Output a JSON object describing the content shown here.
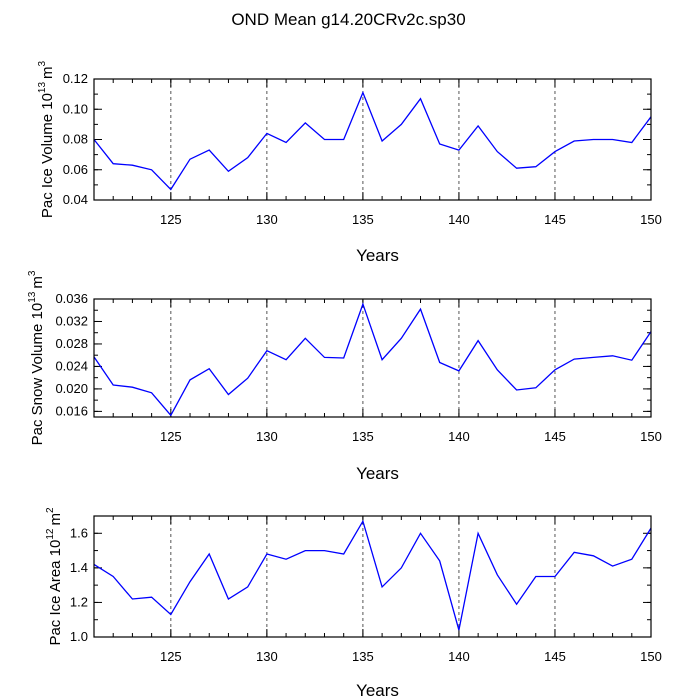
{
  "title": "OND Mean g14.20CRv2c.sp30",
  "chart_data": [
    {
      "type": "line",
      "xlabel": "Years",
      "ylabel": "Pac Ice Volume 10",
      "ylabel_exp": "13",
      "ylabel_unit": "m",
      "ylabel_unit_exp": "3",
      "xlim": [
        121,
        150
      ],
      "ylim": [
        0.04,
        0.12
      ],
      "xticks": [
        125,
        130,
        135,
        140,
        145,
        150
      ],
      "xtick_labels": [
        "125",
        "130",
        "135",
        "140",
        "145",
        "150"
      ],
      "yticks": [
        0.04,
        0.06,
        0.08,
        0.1,
        0.12
      ],
      "ytick_labels": [
        "0.04",
        "0.06",
        "0.08",
        "0.10",
        "0.12"
      ],
      "gridlines_x": [
        125,
        130,
        135,
        140,
        145
      ],
      "line_color": "#0000ff",
      "x": [
        121,
        122,
        123,
        124,
        125,
        126,
        127,
        128,
        129,
        130,
        131,
        132,
        133,
        134,
        135,
        136,
        137,
        138,
        139,
        140,
        141,
        142,
        143,
        144,
        145,
        146,
        147,
        148,
        149,
        150
      ],
      "values": [
        0.08,
        0.064,
        0.063,
        0.06,
        0.047,
        0.067,
        0.073,
        0.059,
        0.068,
        0.084,
        0.078,
        0.091,
        0.08,
        0.08,
        0.111,
        0.079,
        0.09,
        0.107,
        0.077,
        0.073,
        0.089,
        0.072,
        0.061,
        0.062,
        0.072,
        0.079,
        0.08,
        0.08,
        0.078,
        0.095
      ]
    },
    {
      "type": "line",
      "xlabel": "Years",
      "ylabel": "Pac Snow Volume 10",
      "ylabel_exp": "13",
      "ylabel_unit": "m",
      "ylabel_unit_exp": "3",
      "xlim": [
        121,
        150
      ],
      "ylim": [
        0.015,
        0.036
      ],
      "xticks": [
        125,
        130,
        135,
        140,
        145,
        150
      ],
      "xtick_labels": [
        "125",
        "130",
        "135",
        "140",
        "145",
        "150"
      ],
      "yticks": [
        0.016,
        0.02,
        0.024,
        0.028,
        0.032,
        0.036
      ],
      "ytick_labels": [
        "0.016",
        "0.020",
        "0.024",
        "0.028",
        "0.032",
        "0.036"
      ],
      "gridlines_x": [
        125,
        130,
        135,
        140,
        145
      ],
      "line_color": "#0000ff",
      "x": [
        121,
        122,
        123,
        124,
        125,
        126,
        127,
        128,
        129,
        130,
        131,
        132,
        133,
        134,
        135,
        136,
        137,
        138,
        139,
        140,
        141,
        142,
        143,
        144,
        145,
        146,
        147,
        148,
        149,
        150
      ],
      "values": [
        0.0257,
        0.0207,
        0.0203,
        0.0193,
        0.0153,
        0.0216,
        0.0236,
        0.019,
        0.0219,
        0.0268,
        0.0252,
        0.029,
        0.0256,
        0.0255,
        0.0351,
        0.0252,
        0.029,
        0.0342,
        0.0247,
        0.0232,
        0.0286,
        0.0234,
        0.0198,
        0.0202,
        0.0234,
        0.0253,
        0.0256,
        0.0259,
        0.0251,
        0.0302
      ]
    },
    {
      "type": "line",
      "xlabel": "Years",
      "ylabel": "Pac Ice Area 10",
      "ylabel_exp": "12",
      "ylabel_unit": "m",
      "ylabel_unit_exp": "2",
      "xlim": [
        121,
        150
      ],
      "ylim": [
        1.0,
        1.7
      ],
      "xticks": [
        125,
        130,
        135,
        140,
        145,
        150
      ],
      "xtick_labels": [
        "125",
        "130",
        "135",
        "140",
        "145",
        "150"
      ],
      "yticks": [
        1.0,
        1.2,
        1.4,
        1.6
      ],
      "ytick_labels": [
        "1.0",
        "1.2",
        "1.4",
        "1.6"
      ],
      "gridlines_x": [
        125,
        130,
        135,
        140,
        145
      ],
      "line_color": "#0000ff",
      "x": [
        121,
        122,
        123,
        124,
        125,
        126,
        127,
        128,
        129,
        130,
        131,
        132,
        133,
        134,
        135,
        136,
        137,
        138,
        139,
        140,
        141,
        142,
        143,
        144,
        145,
        146,
        147,
        148,
        149,
        150
      ],
      "values": [
        1.42,
        1.35,
        1.22,
        1.23,
        1.13,
        1.32,
        1.48,
        1.22,
        1.29,
        1.48,
        1.45,
        1.5,
        1.5,
        1.48,
        1.67,
        1.29,
        1.4,
        1.6,
        1.44,
        1.04,
        1.6,
        1.36,
        1.19,
        1.35,
        1.35,
        1.49,
        1.47,
        1.41,
        1.45,
        1.63
      ]
    }
  ]
}
